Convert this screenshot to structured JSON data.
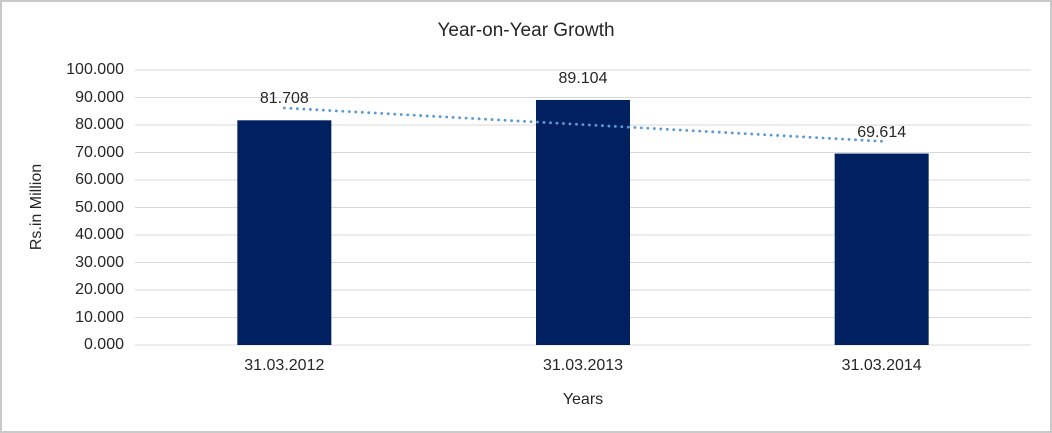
{
  "window": {
    "background": "#FFFFFF",
    "border_color": "#C9C9C9"
  },
  "chart_data": {
    "type": "bar",
    "title": "Year-on-Year Growth",
    "categories": [
      "31.03.2012",
      "31.03.2013",
      "31.03.2014"
    ],
    "values": [
      81.708,
      89.104,
      69.614
    ],
    "data_labels": [
      "81.708",
      "89.104",
      "69.614"
    ],
    "xlabel": "Years",
    "ylabel": "Rs.in Million",
    "ylim": [
      0,
      100
    ],
    "ytick_step": 10,
    "ytick_labels": [
      "0.000",
      "10.000",
      "20.000",
      "30.000",
      "40.000",
      "50.000",
      "60.000",
      "70.000",
      "80.000",
      "90.000",
      "100.000"
    ],
    "grid": true,
    "legend_position": "none",
    "bar_color": "#002060",
    "gridline_color": "#D9D9D9",
    "text_color": "#262626",
    "trendline": {
      "type": "linear",
      "style": "dotted",
      "color": "#5B9BD5",
      "values": [
        86.189,
        80.142,
        74.095
      ]
    }
  }
}
